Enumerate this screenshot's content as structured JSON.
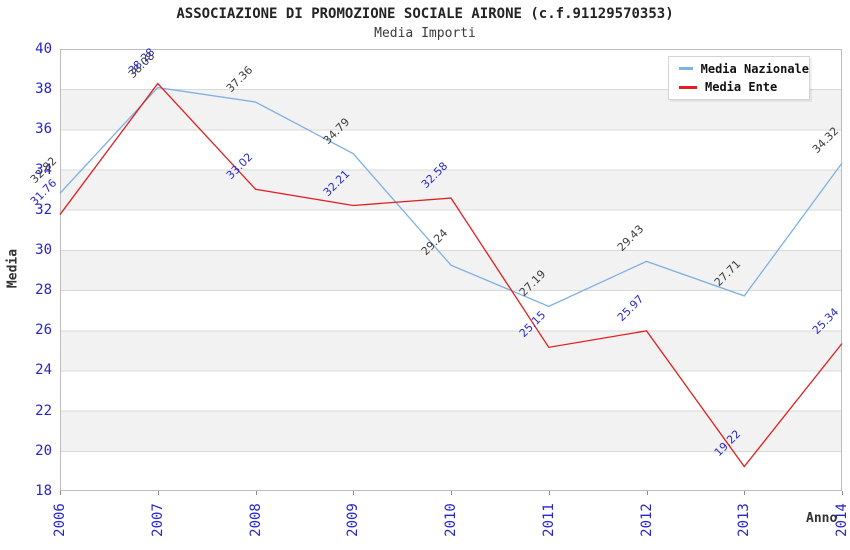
{
  "title": "ASSOCIAZIONE DI PROMOZIONE SOCIALE AIRONE (c.f.91129570353)",
  "subtitle": "Media Importi",
  "x_axis_label": "Anno",
  "y_axis_label": "Media",
  "chart_data": {
    "type": "line",
    "title": "ASSOCIAZIONE DI PROMOZIONE SOCIALE AIRONE (c.f.91129570353)",
    "subtitle": "Media Importi",
    "xlabel": "Anno",
    "ylabel": "Media",
    "x": [
      "2006",
      "2007",
      "2008",
      "2009",
      "2010",
      "2011",
      "2012",
      "2013",
      "2014"
    ],
    "series": [
      {
        "name": "Media Nazionale",
        "color": "#7fb1e3",
        "label_color": "#3c3c3c",
        "values": [
          32.82,
          38.08,
          37.36,
          34.79,
          29.24,
          27.19,
          29.43,
          27.71,
          34.32
        ]
      },
      {
        "name": "Media Ente",
        "color": "#e02020",
        "label_color": "#2a2ac8",
        "values": [
          31.76,
          38.28,
          33.02,
          32.21,
          32.58,
          25.15,
          25.97,
          19.22,
          25.34
        ]
      }
    ],
    "ylim": [
      18,
      40
    ],
    "y_ticks": [
      40,
      38,
      36,
      34,
      32,
      30,
      28,
      26,
      24,
      22,
      20,
      18
    ],
    "legend_position": "top-right",
    "grid": "horizontal-bands",
    "band_colors": [
      "#ffffff",
      "#f2f2f2"
    ],
    "tick_label_color": "#2525cc"
  }
}
